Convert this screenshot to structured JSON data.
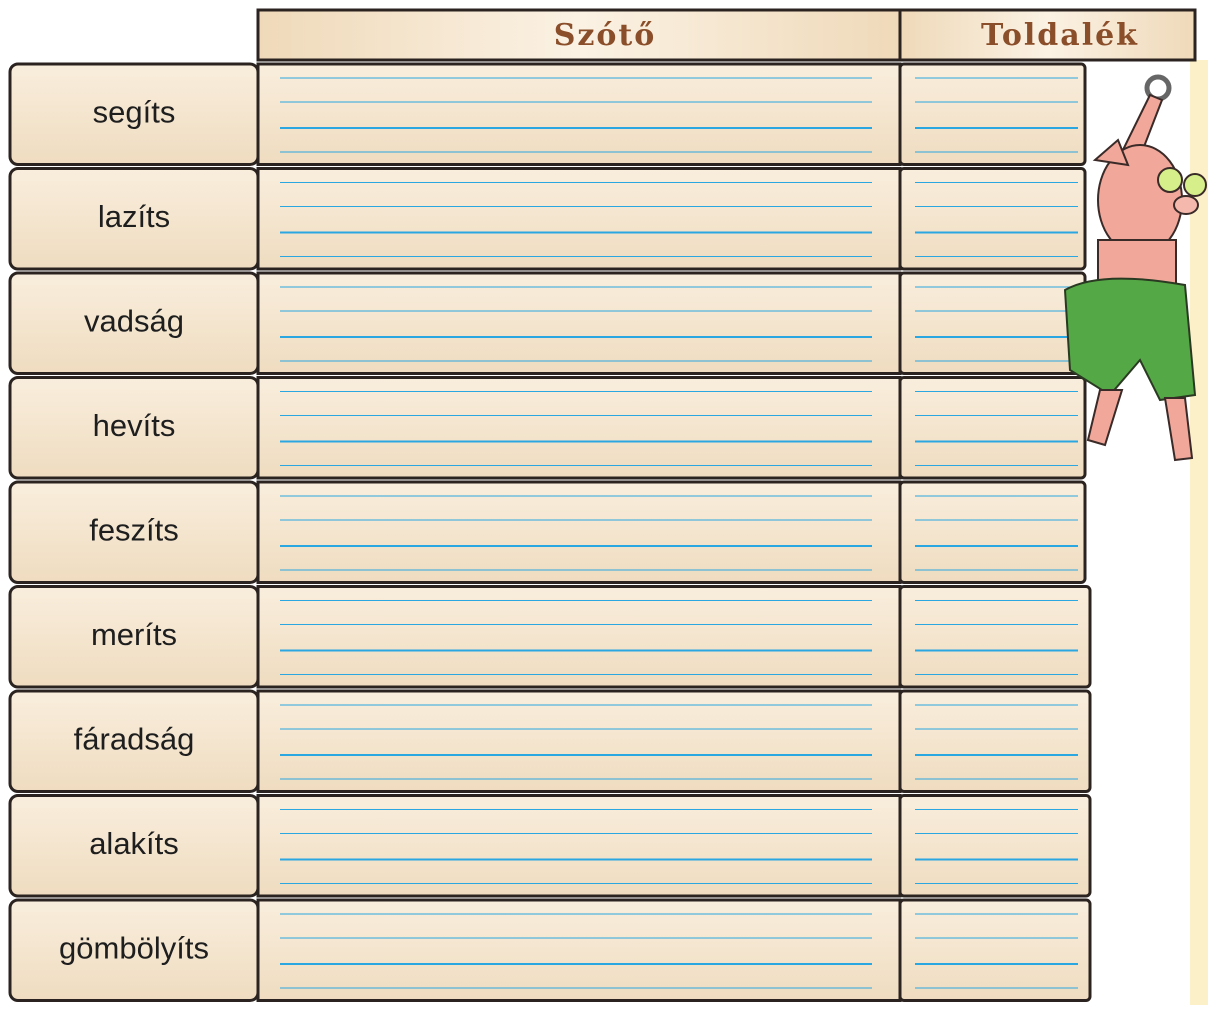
{
  "header": {
    "columns": [
      "Szótő",
      "Toldalék"
    ]
  },
  "rows": [
    "segíts",
    "lazíts",
    "vadság",
    "hevíts",
    "feszíts",
    "meríts",
    "fáradság",
    "alakíts",
    "gömbölyíts"
  ]
}
